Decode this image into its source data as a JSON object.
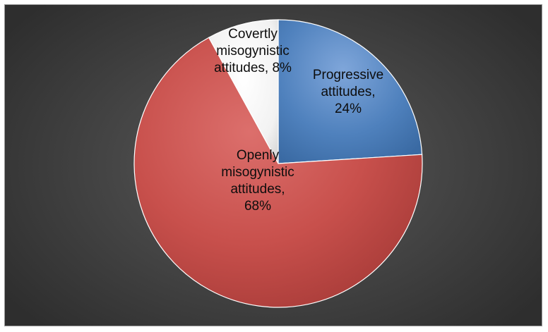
{
  "chart_data": {
    "type": "pie",
    "slices": [
      {
        "label": "Progressive attitudes",
        "value": 24,
        "value_label": "24%",
        "color": "#4f81bd",
        "label_lines": [
          "Progressive",
          "attitudes,",
          "24%"
        ]
      },
      {
        "label": "Openly misogynistic attitudes",
        "value": 68,
        "value_label": "68%",
        "color": "#c0504d",
        "label_lines": [
          "Openly",
          "misogynistic",
          "attitudes,",
          "68%"
        ]
      },
      {
        "label": "Covertly misogynistic attitudes",
        "value": 8,
        "value_label": "8%",
        "color": "#f2f2f2",
        "label_lines": [
          "Covertly",
          "misogynistic",
          "attitudes, 8%"
        ]
      }
    ],
    "start_angle": "12 o'clock, clockwise",
    "legend": "none",
    "background_color": "#3f3f3f"
  }
}
